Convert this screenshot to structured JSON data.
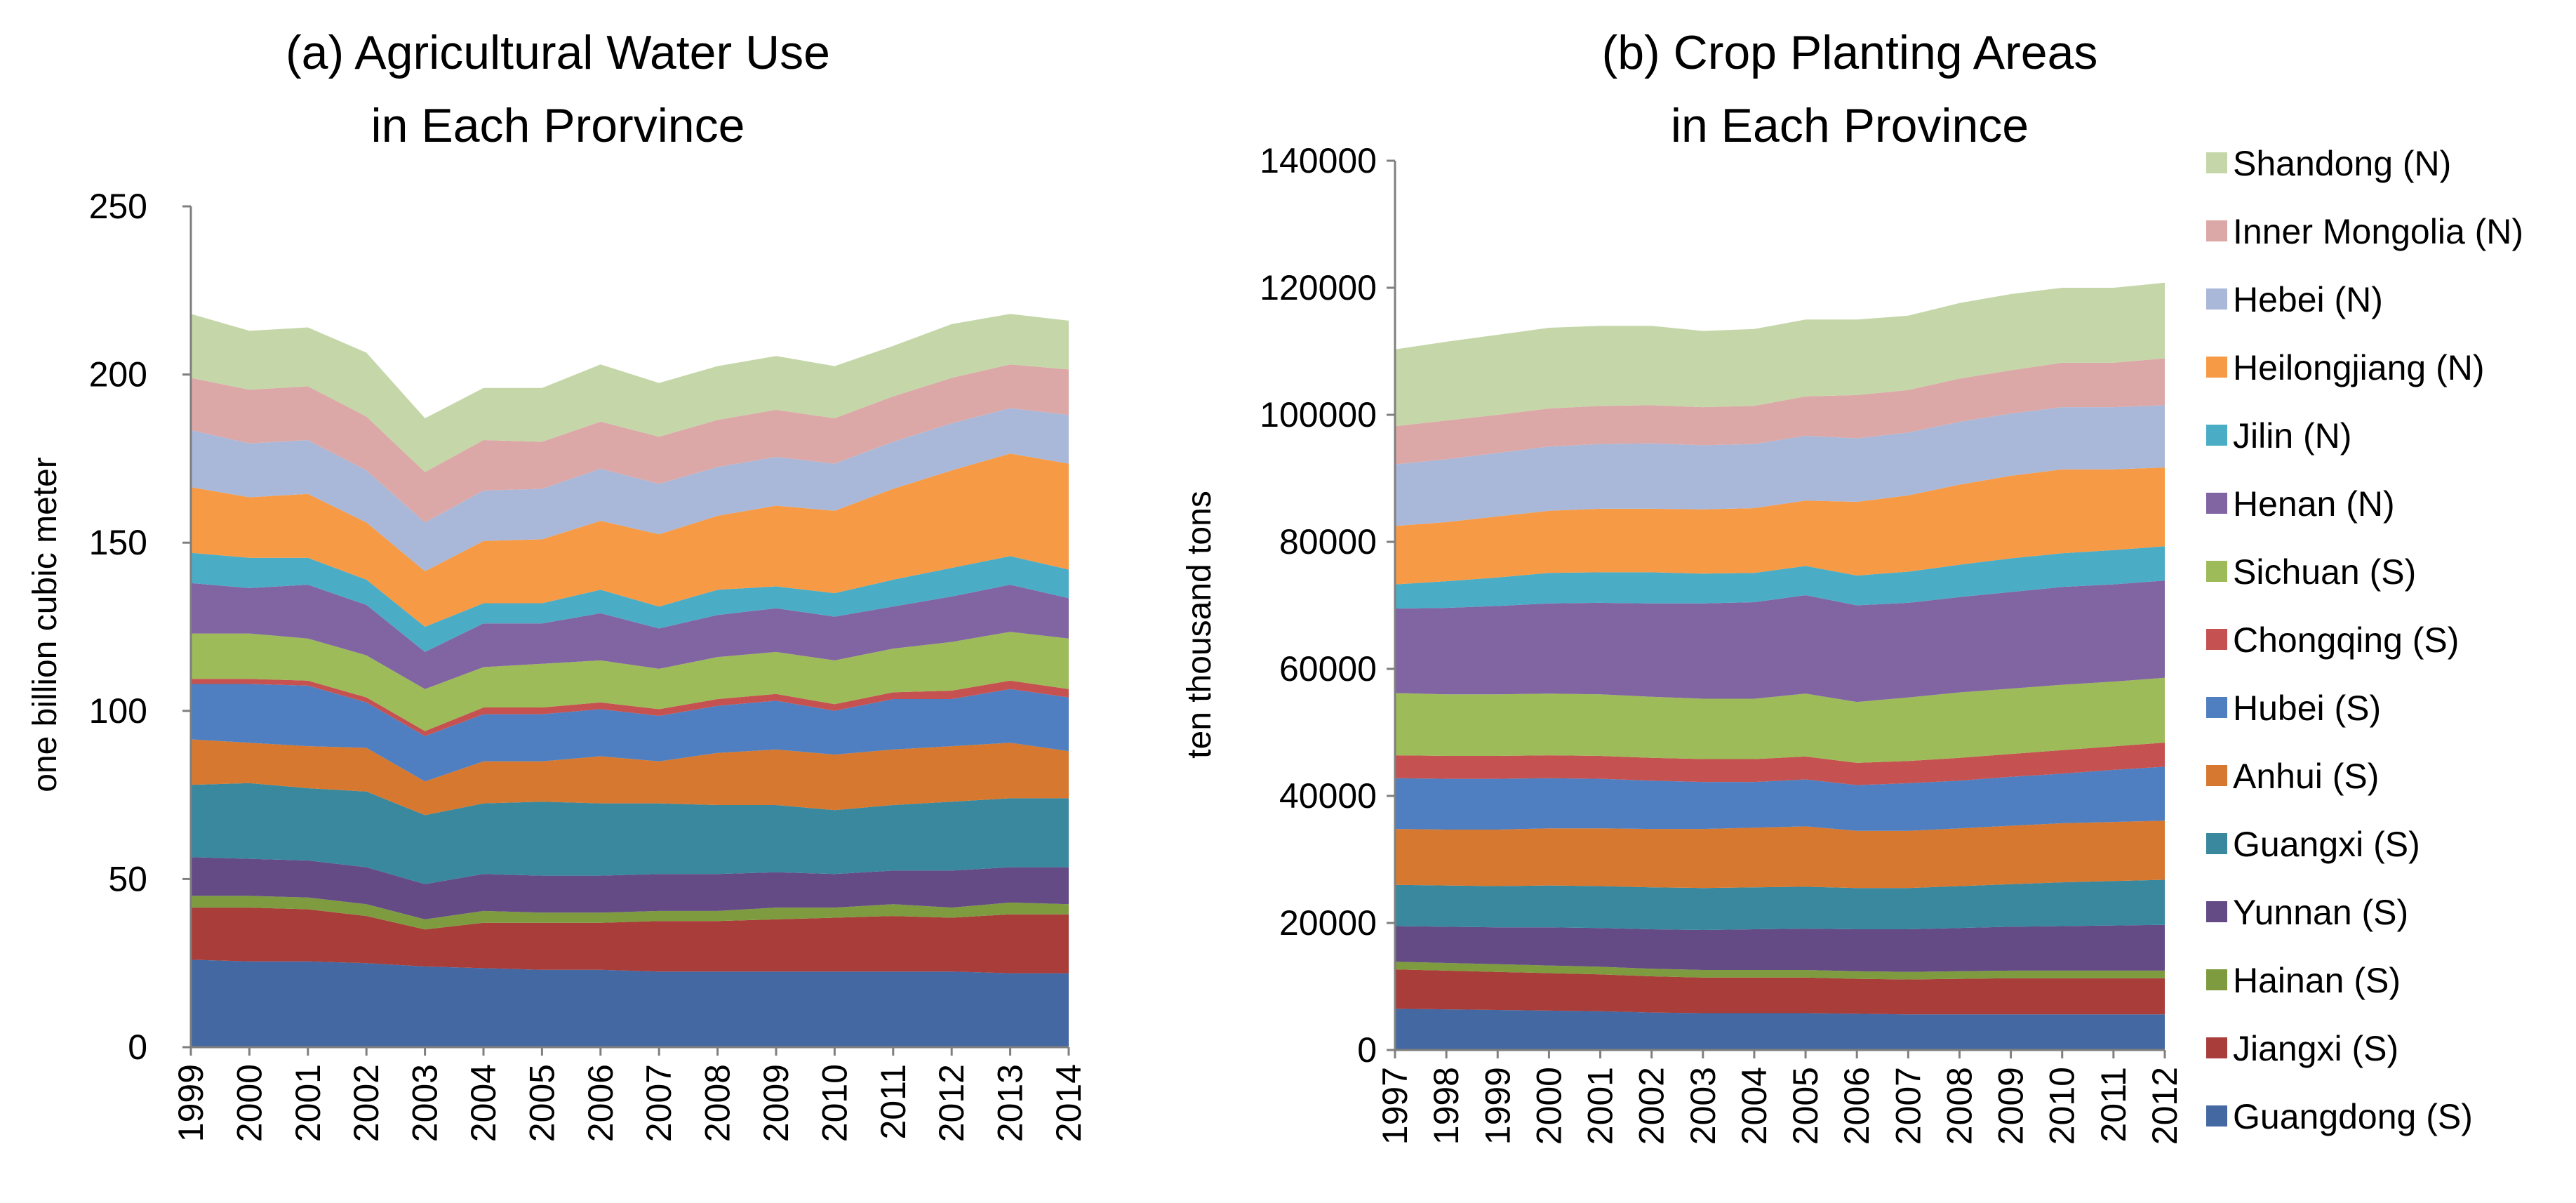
{
  "chart_data": [
    {
      "type": "area",
      "stacked": true,
      "title": [
        "(a) Agricultural Water Use",
        "in Each Prorvince"
      ],
      "xlabel": "",
      "ylabel": "one  billion cubic meter",
      "ylim": [
        0,
        250
      ],
      "yticks": [
        "0",
        "50",
        "100",
        "150",
        "200",
        "250"
      ],
      "x": [
        "1999",
        "2000",
        "2001",
        "2002",
        "2003",
        "2004",
        "2005",
        "2006",
        "2007",
        "2008",
        "2009",
        "2010",
        "2011",
        "2012",
        "2013",
        "2014"
      ],
      "series": [
        {
          "name": "Guangdong (S)",
          "values": [
            26,
            25.5,
            25.5,
            25,
            24,
            23.5,
            23,
            23,
            22.5,
            22.5,
            22.5,
            22.5,
            22.5,
            22.5,
            22,
            22
          ]
        },
        {
          "name": "Jiangxi (S)",
          "values": [
            15.5,
            16,
            15.5,
            14,
            11,
            13.5,
            14,
            14,
            15,
            15,
            15.5,
            16,
            16.5,
            16,
            17.5,
            17.5
          ]
        },
        {
          "name": "Hainan (S)",
          "values": [
            3.5,
            3.5,
            3.5,
            3.5,
            3,
            3.5,
            3,
            3,
            3,
            3,
            3.5,
            3,
            3.5,
            3,
            3.5,
            3
          ]
        },
        {
          "name": "Yunnan (S)",
          "values": [
            11.5,
            11,
            11,
            11,
            10.5,
            11,
            11,
            11,
            11,
            11,
            10.5,
            10,
            10,
            11,
            10.5,
            11
          ]
        },
        {
          "name": "Guangxi (S)",
          "values": [
            21.5,
            22.5,
            21.5,
            22.5,
            20.5,
            21,
            22,
            21.5,
            21,
            20.5,
            20,
            19,
            19.5,
            20.5,
            20.5,
            20.5
          ]
        },
        {
          "name": "Anhui (S)",
          "values": [
            13.5,
            12,
            12.5,
            13,
            10,
            12.5,
            12,
            14,
            12.5,
            15.5,
            16.5,
            16.5,
            16.5,
            16.5,
            16.5,
            14
          ]
        },
        {
          "name": "Hubei (S)",
          "values": [
            16.5,
            17.5,
            18,
            13.5,
            13.5,
            14,
            14,
            14,
            13.5,
            14,
            14.5,
            13,
            15,
            14,
            16,
            16
          ]
        },
        {
          "name": "Chongqing (S)",
          "values": [
            1.5,
            1.5,
            1.5,
            1.5,
            1.5,
            2,
            2,
            2,
            2,
            2,
            2,
            2,
            2,
            2.5,
            2.5,
            2.5
          ]
        },
        {
          "name": "Sichuan (S)",
          "values": [
            13.5,
            13.5,
            12.5,
            12.5,
            12.5,
            12,
            13,
            12.5,
            12,
            12.5,
            12.5,
            13,
            13,
            14.5,
            14.5,
            15
          ]
        },
        {
          "name": "Henan (N)",
          "values": [
            15,
            13.5,
            16,
            15,
            11,
            13,
            12,
            14,
            12,
            12.5,
            13,
            13,
            12.5,
            13.5,
            14,
            12
          ]
        },
        {
          "name": "Jilin (N)",
          "values": [
            9,
            9,
            8,
            7.5,
            7.5,
            6,
            6,
            7,
            6.5,
            7.5,
            6.5,
            7,
            8,
            8.5,
            8.5,
            8.5
          ]
        },
        {
          "name": "Heilongjiang (N)",
          "values": [
            19.5,
            18,
            19,
            17,
            16.5,
            18.5,
            19,
            20.5,
            21.5,
            22,
            24,
            24.5,
            27,
            29,
            30.5,
            31.5
          ]
        },
        {
          "name": "Hebei (N)",
          "values": [
            17,
            16,
            16,
            15.5,
            14.5,
            15,
            15,
            15.5,
            15,
            14.5,
            14.5,
            14,
            14,
            14,
            13.5,
            14.5
          ]
        },
        {
          "name": "Inner Mongolia (N)",
          "values": [
            15.5,
            16,
            16,
            16,
            15,
            15,
            14,
            14,
            14,
            14,
            14,
            13.5,
            13.5,
            13.5,
            13,
            13.5
          ]
        },
        {
          "name": "Shandong (N)",
          "values": [
            19,
            17.5,
            17.5,
            19,
            16,
            15.5,
            16,
            17,
            16,
            16,
            16,
            15.5,
            15,
            16,
            15,
            14.5
          ]
        }
      ]
    },
    {
      "type": "area",
      "stacked": true,
      "title": [
        "(b) Crop Planting Areas",
        "in Each Province"
      ],
      "xlabel": "",
      "ylabel": "ten  thousand tons",
      "ylim": [
        0,
        140000
      ],
      "yticks": [
        "0",
        "20000",
        "40000",
        "60000",
        "80000",
        "100000",
        "120000",
        "140000"
      ],
      "x": [
        "1997",
        "1998",
        "1999",
        "2000",
        "2001",
        "2002",
        "2003",
        "2004",
        "2005",
        "2006",
        "2007",
        "2008",
        "2009",
        "2010",
        "2011",
        "2012"
      ],
      "series": [
        {
          "name": "Guangdong (S)",
          "values": [
            6500,
            6400,
            6300,
            6200,
            6100,
            5900,
            5800,
            5800,
            5800,
            5700,
            5600,
            5600,
            5600,
            5600,
            5600,
            5600
          ]
        },
        {
          "name": "Jiangxi (S)",
          "values": [
            6200,
            6100,
            6000,
            5900,
            5800,
            5700,
            5600,
            5600,
            5600,
            5500,
            5500,
            5600,
            5700,
            5700,
            5700,
            5700
          ]
        },
        {
          "name": "Hainan (S)",
          "values": [
            1200,
            1200,
            1200,
            1200,
            1200,
            1200,
            1200,
            1200,
            1200,
            1200,
            1200,
            1200,
            1200,
            1200,
            1200,
            1200
          ]
        },
        {
          "name": "Yunnan (S)",
          "values": [
            5600,
            5700,
            5800,
            6000,
            6100,
            6200,
            6300,
            6400,
            6500,
            6600,
            6700,
            6800,
            6900,
            7000,
            7100,
            7200
          ]
        },
        {
          "name": "Guangxi (S)",
          "values": [
            6500,
            6500,
            6500,
            6600,
            6600,
            6600,
            6600,
            6600,
            6600,
            6500,
            6500,
            6600,
            6700,
            6900,
            7000,
            7100
          ]
        },
        {
          "name": "Anhui (S)",
          "values": [
            8800,
            8800,
            8900,
            9000,
            9100,
            9200,
            9300,
            9400,
            9500,
            9000,
            9000,
            9100,
            9200,
            9300,
            9300,
            9300
          ]
        },
        {
          "name": "Hubei (S)",
          "values": [
            8000,
            8000,
            8000,
            7900,
            7800,
            7600,
            7400,
            7200,
            7400,
            7200,
            7500,
            7500,
            7700,
            7800,
            8200,
            8500
          ]
        },
        {
          "name": "Chongqing (S)",
          "values": [
            3600,
            3600,
            3600,
            3600,
            3600,
            3600,
            3600,
            3600,
            3600,
            3500,
            3500,
            3600,
            3600,
            3700,
            3700,
            3800
          ]
        },
        {
          "name": "Sichuan (S)",
          "values": [
            9800,
            9700,
            9700,
            9700,
            9700,
            9600,
            9500,
            9500,
            9900,
            9600,
            10000,
            10300,
            10300,
            10300,
            10200,
            10200
          ]
        },
        {
          "name": "Henan (N)",
          "values": [
            13300,
            13600,
            13900,
            14200,
            14400,
            14700,
            15000,
            15200,
            15500,
            15200,
            14900,
            15000,
            15200,
            15400,
            15300,
            15300
          ]
        },
        {
          "name": "Jilin (N)",
          "values": [
            3800,
            4200,
            4500,
            4800,
            4800,
            4900,
            4700,
            4600,
            4600,
            4700,
            4900,
            5100,
            5300,
            5300,
            5400,
            5400
          ]
        },
        {
          "name": "Heilongjiang (N)",
          "values": [
            9200,
            9300,
            9600,
            9800,
            10000,
            10000,
            10100,
            10200,
            10300,
            11600,
            12000,
            12600,
            13000,
            13200,
            12700,
            12400
          ]
        },
        {
          "name": "Hebei (N)",
          "values": [
            9700,
            9900,
            10000,
            10100,
            10200,
            10300,
            10100,
            10100,
            10200,
            10000,
            9900,
            9900,
            9800,
            9800,
            9800,
            9800
          ]
        },
        {
          "name": "Inner Mongolia (N)",
          "values": [
            6000,
            6100,
            6000,
            6000,
            6000,
            6000,
            6000,
            6000,
            6200,
            6800,
            6700,
            6800,
            6800,
            7000,
            7000,
            7400
          ]
        },
        {
          "name": "Shandong (N)",
          "values": [
            12100,
            12400,
            12600,
            12700,
            12600,
            12500,
            12000,
            12100,
            12100,
            11900,
            11700,
            11900,
            12000,
            11800,
            11800,
            11900
          ]
        }
      ],
      "legend": {
        "placement": "right",
        "entries": [
          "Shandong (N)",
          "Inner Mongolia (N)",
          "Hebei (N)",
          "Heilongjiang (N)",
          "Jilin (N)",
          "Henan (N)",
          "Sichuan (S)",
          "Chongqing (S)",
          "Hubei (S)",
          "Anhui (S)",
          "Guangxi (S)",
          "Yunnan (S)",
          "Hainan (S)",
          "Jiangxi (S)",
          "Guangdong (S)"
        ]
      }
    }
  ],
  "colors": {
    "Guangdong (S)": "#4468A2",
    "Jiangxi (S)": "#A83D3A",
    "Hainan (S)": "#7E9C3F",
    "Yunnan (S)": "#644B85",
    "Guangxi (S)": "#39889E",
    "Anhui (S)": "#D6782F",
    "Hubei (S)": "#4F7FC0",
    "Chongqing (S)": "#C55250",
    "Sichuan (S)": "#9DBB58",
    "Henan (N)": "#8164A2",
    "Jilin (N)": "#4BACC6",
    "Heilongjiang (N)": "#F79A45",
    "Hebei (N)": "#A9B8D8",
    "Inner Mongolia (N)": "#DCA8A7",
    "Shandong (N)": "#C5D7A9"
  }
}
